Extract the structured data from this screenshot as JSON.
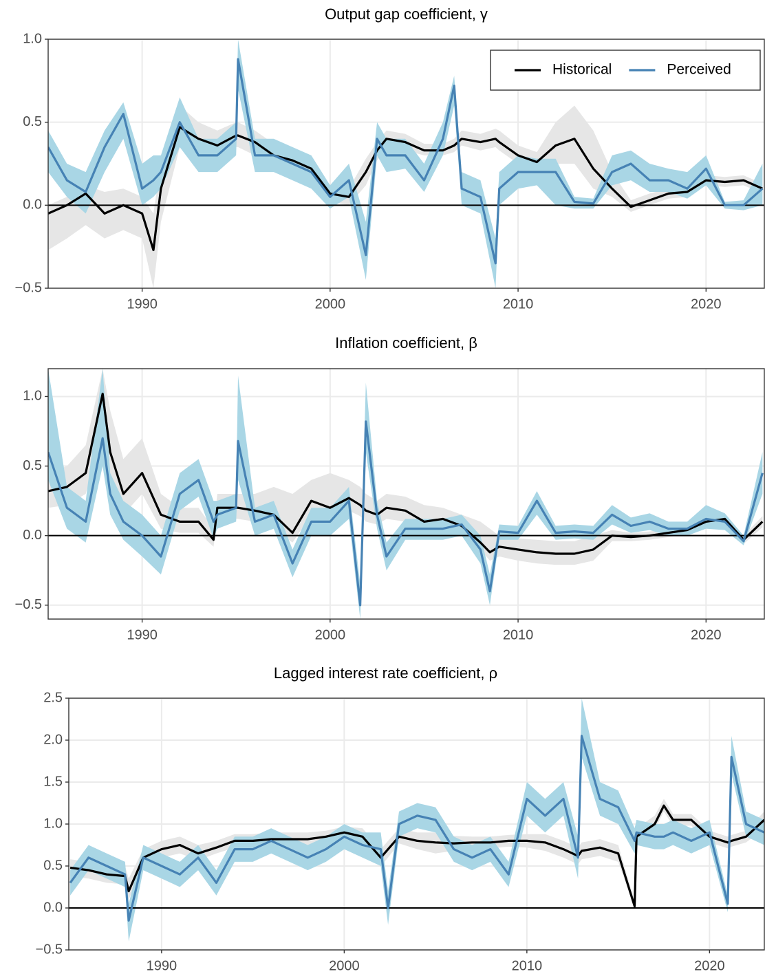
{
  "chart_data": [
    {
      "type": "line",
      "title": "Output gap coefficient, γ",
      "x": [
        1985,
        1986,
        1987,
        1988,
        1989,
        1990,
        1990.6,
        1991,
        1992,
        1993,
        1994,
        1995,
        1995.1,
        1996,
        1997,
        1998,
        1999,
        2000,
        2001,
        2001.9,
        2002.5,
        2003,
        2004,
        2005,
        2006,
        2006.6,
        2007,
        2008,
        2008.8,
        2009,
        2010,
        2011,
        2012,
        2013,
        2014,
        2015,
        2016,
        2017,
        2018,
        2019,
        2020,
        2021,
        2022,
        2023
      ],
      "xlim": [
        1985,
        2023.1
      ],
      "xticks": [
        1990,
        2000,
        2010,
        2020
      ],
      "ylim": [
        -0.5,
        1.0
      ],
      "yticks": [
        {
          "value": -0.5,
          "label": "−0.5"
        },
        {
          "value": 0,
          "label": "0.0"
        },
        {
          "value": 0.5,
          "label": "0.5"
        },
        {
          "value": 1.0,
          "label": "1.0"
        }
      ],
      "hline": 0,
      "grid": true,
      "legend": "top-right",
      "series": [
        {
          "name": "Historical",
          "color": "#000000",
          "band_color": "#e6e6e6",
          "values": [
            -0.05,
            0.0,
            0.07,
            -0.05,
            0.0,
            -0.05,
            -0.27,
            0.1,
            0.47,
            0.4,
            0.36,
            0.42,
            0.42,
            0.38,
            0.3,
            0.27,
            0.22,
            0.07,
            0.05,
            0.2,
            0.33,
            0.4,
            0.38,
            0.33,
            0.33,
            0.36,
            0.4,
            0.38,
            0.4,
            0.38,
            0.3,
            0.26,
            0.36,
            0.4,
            0.22,
            0.1,
            -0.01,
            0.03,
            0.07,
            0.08,
            0.15,
            0.14,
            0.15,
            0.1
          ],
          "lower": [
            -0.27,
            -0.2,
            -0.12,
            -0.2,
            -0.15,
            -0.2,
            -0.5,
            -0.1,
            0.35,
            0.32,
            0.3,
            0.35,
            0.35,
            0.3,
            0.25,
            0.2,
            0.15,
            0.02,
            0.0,
            0.12,
            0.27,
            0.35,
            0.33,
            0.3,
            0.3,
            0.32,
            0.36,
            0.33,
            0.35,
            0.33,
            0.25,
            0.22,
            0.25,
            0.25,
            0.1,
            0.05,
            -0.04,
            0.0,
            0.04,
            0.05,
            0.12,
            0.11,
            0.12,
            0.07
          ],
          "upper": [
            0.0,
            0.05,
            0.12,
            0.08,
            0.1,
            0.05,
            -0.05,
            0.25,
            0.6,
            0.5,
            0.45,
            0.5,
            0.5,
            0.45,
            0.37,
            0.33,
            0.28,
            0.12,
            0.1,
            0.28,
            0.38,
            0.45,
            0.43,
            0.37,
            0.37,
            0.4,
            0.45,
            0.43,
            0.46,
            0.45,
            0.36,
            0.32,
            0.5,
            0.6,
            0.45,
            0.2,
            0.03,
            0.07,
            0.1,
            0.12,
            0.18,
            0.17,
            0.18,
            0.13
          ]
        },
        {
          "name": "Perceived",
          "color": "#4682b4",
          "band_color": "#a9d6e5",
          "values": [
            0.35,
            0.15,
            0.08,
            0.35,
            0.55,
            0.1,
            0.15,
            0.2,
            0.5,
            0.3,
            0.3,
            0.4,
            0.88,
            0.3,
            0.3,
            0.25,
            0.2,
            0.05,
            0.15,
            -0.3,
            0.4,
            0.3,
            0.3,
            0.15,
            0.4,
            0.72,
            0.1,
            0.05,
            -0.35,
            0.1,
            0.2,
            0.2,
            0.2,
            0.02,
            0.01,
            0.2,
            0.25,
            0.15,
            0.15,
            0.1,
            0.22,
            0.0,
            0.0,
            0.1
          ],
          "lower": [
            0.2,
            0.05,
            -0.05,
            0.2,
            0.4,
            0.0,
            0.05,
            0.1,
            0.35,
            0.2,
            0.2,
            0.3,
            0.7,
            0.2,
            0.2,
            0.15,
            0.1,
            -0.02,
            0.05,
            -0.45,
            0.3,
            0.2,
            0.22,
            0.08,
            0.3,
            0.6,
            0.0,
            -0.05,
            -0.5,
            0.0,
            0.1,
            0.12,
            0.0,
            -0.02,
            -0.02,
            0.12,
            0.15,
            0.08,
            0.08,
            0.04,
            0.12,
            -0.02,
            -0.03,
            0.0
          ],
          "upper": [
            0.45,
            0.25,
            0.2,
            0.45,
            0.62,
            0.25,
            0.3,
            0.3,
            0.65,
            0.4,
            0.4,
            0.5,
            1.0,
            0.4,
            0.4,
            0.35,
            0.3,
            0.12,
            0.25,
            -0.1,
            0.5,
            0.4,
            0.4,
            0.25,
            0.5,
            0.78,
            0.2,
            0.15,
            -0.2,
            0.2,
            0.3,
            0.28,
            0.28,
            0.05,
            0.04,
            0.3,
            0.33,
            0.25,
            0.22,
            0.2,
            0.3,
            0.02,
            0.03,
            0.25
          ]
        }
      ]
    },
    {
      "type": "line",
      "title": "Inflation coefficient,  β",
      "x": [
        1985,
        1986,
        1987,
        1987.9,
        1988.3,
        1989,
        1990,
        1991,
        1992,
        1993,
        1993.8,
        1994,
        1995,
        1995.1,
        1996,
        1997,
        1998,
        1999,
        2000,
        2001,
        2001.6,
        2001.9,
        2002.5,
        2003,
        2004,
        2005,
        2006,
        2007,
        2008,
        2008.5,
        2009,
        2010,
        2011,
        2012,
        2013,
        2014,
        2015,
        2016,
        2017,
        2018,
        2019,
        2020,
        2021,
        2022,
        2023
      ],
      "xlim": [
        1985,
        2023.1
      ],
      "xticks": [
        1990,
        2000,
        2010,
        2020
      ],
      "ylim": [
        -0.6,
        1.2
      ],
      "yticks": [
        {
          "value": -0.5,
          "label": "−0.5"
        },
        {
          "value": 0,
          "label": "0.0"
        },
        {
          "value": 0.5,
          "label": "0.5"
        },
        {
          "value": 1.0,
          "label": "1.0"
        }
      ],
      "hline": 0,
      "grid": true,
      "series": [
        {
          "color": "#000000",
          "band_color": "#e6e6e6",
          "values": [
            0.32,
            0.35,
            0.45,
            1.02,
            0.6,
            0.3,
            0.45,
            0.15,
            0.1,
            0.1,
            -0.03,
            0.2,
            0.2,
            0.2,
            0.18,
            0.15,
            0.02,
            0.25,
            0.2,
            0.27,
            0.22,
            0.18,
            0.15,
            0.2,
            0.18,
            0.1,
            0.12,
            0.07,
            -0.05,
            -0.12,
            -0.08,
            -0.1,
            -0.12,
            -0.13,
            -0.13,
            -0.1,
            0.0,
            -0.01,
            0.0,
            0.02,
            0.04,
            0.1,
            0.12,
            -0.03,
            0.1
          ],
          "lower": [
            0.2,
            0.22,
            0.3,
            0.75,
            0.45,
            0.15,
            0.3,
            0.05,
            0.02,
            0.02,
            -0.08,
            0.12,
            0.12,
            0.12,
            0.1,
            0.05,
            -0.05,
            0.15,
            0.1,
            0.18,
            0.14,
            0.1,
            0.08,
            0.12,
            0.1,
            0.03,
            0.05,
            0.0,
            -0.1,
            -0.18,
            -0.15,
            -0.18,
            -0.2,
            -0.21,
            -0.21,
            -0.18,
            -0.04,
            -0.04,
            -0.03,
            -0.01,
            0.01,
            0.07,
            0.09,
            -0.06,
            0.06
          ],
          "upper": [
            0.45,
            0.5,
            0.65,
            1.2,
            0.9,
            0.55,
            0.7,
            0.3,
            0.2,
            0.2,
            0.05,
            0.3,
            0.3,
            0.3,
            0.3,
            0.35,
            0.3,
            0.4,
            0.45,
            0.4,
            0.35,
            0.3,
            0.25,
            0.3,
            0.28,
            0.22,
            0.2,
            0.15,
            0.1,
            0.05,
            0.0,
            -0.02,
            -0.03,
            -0.04,
            -0.04,
            0.0,
            0.04,
            0.02,
            0.03,
            0.05,
            0.07,
            0.13,
            0.15,
            0.0,
            0.14
          ]
        },
        {
          "color": "#4682b4",
          "band_color": "#a9d6e5",
          "values": [
            0.6,
            0.2,
            0.1,
            0.7,
            0.3,
            0.1,
            0.0,
            -0.15,
            0.3,
            0.4,
            0.1,
            0.15,
            0.2,
            0.68,
            0.1,
            0.15,
            -0.2,
            0.1,
            0.1,
            0.25,
            -0.5,
            0.82,
            0.15,
            -0.15,
            0.05,
            0.05,
            0.05,
            0.08,
            -0.1,
            -0.4,
            0.03,
            0.02,
            0.25,
            0.02,
            0.03,
            0.02,
            0.15,
            0.07,
            0.1,
            0.05,
            0.05,
            0.12,
            0.1,
            -0.04,
            0.45
          ],
          "lower": [
            0.4,
            0.05,
            -0.05,
            0.5,
            0.15,
            -0.03,
            -0.15,
            -0.28,
            0.18,
            0.28,
            -0.02,
            0.05,
            0.1,
            0.4,
            0.0,
            0.05,
            -0.3,
            0.0,
            0.0,
            0.12,
            -0.6,
            0.6,
            0.05,
            -0.25,
            -0.03,
            -0.03,
            -0.03,
            0.0,
            -0.2,
            -0.5,
            -0.03,
            -0.03,
            0.15,
            -0.03,
            -0.02,
            -0.03,
            0.08,
            0.02,
            0.04,
            0.0,
            0.0,
            0.05,
            0.04,
            -0.07,
            0.3
          ],
          "upper": [
            1.2,
            0.35,
            0.25,
            1.2,
            0.45,
            0.25,
            0.15,
            0.0,
            0.45,
            0.55,
            0.25,
            0.25,
            0.3,
            1.15,
            0.2,
            0.25,
            -0.1,
            0.2,
            0.2,
            0.35,
            -0.35,
            1.1,
            0.25,
            -0.05,
            0.12,
            0.12,
            0.12,
            0.15,
            0.0,
            -0.28,
            0.08,
            0.07,
            0.32,
            0.07,
            0.08,
            0.07,
            0.22,
            0.13,
            0.16,
            0.1,
            0.1,
            0.22,
            0.16,
            0.0,
            0.6
          ]
        }
      ]
    },
    {
      "type": "line",
      "title": "Lagged interest rate coefficient, ρ",
      "x": [
        1985,
        1986,
        1987,
        1988,
        1988.2,
        1989,
        1990,
        1991,
        1992,
        1993,
        1994,
        1995,
        1996,
        1997,
        1998,
        1999,
        2000,
        2001,
        2002,
        2002.4,
        2003,
        2004,
        2005,
        2006,
        2007,
        2008,
        2009,
        2010,
        2011,
        2012,
        2012.8,
        2013,
        2014,
        2015,
        2015.9,
        2016,
        2017,
        2017.5,
        2018,
        2019,
        2020,
        2021,
        2021.2,
        2022,
        2023
      ],
      "xlim": [
        1984.92,
        2023.0
      ],
      "xticks": [
        1990,
        2000,
        2010,
        2020
      ],
      "ylim": [
        -0.5,
        2.5
      ],
      "yticks": [
        {
          "value": -0.5,
          "label": "−0.5"
        },
        {
          "value": 0,
          "label": "0.0"
        },
        {
          "value": 0.5,
          "label": "0.5"
        },
        {
          "value": 1.0,
          "label": "1.0"
        },
        {
          "value": 1.5,
          "label": "1.5"
        },
        {
          "value": 2.0,
          "label": "2.0"
        },
        {
          "value": 2.5,
          "label": "2.5"
        }
      ],
      "hline": 0,
      "grid": true,
      "series": [
        {
          "color": "#000000",
          "band_color": "#e6e6e6",
          "values": [
            0.48,
            0.45,
            0.4,
            0.38,
            0.2,
            0.6,
            0.7,
            0.75,
            0.65,
            0.72,
            0.8,
            0.8,
            0.82,
            0.82,
            0.82,
            0.85,
            0.9,
            0.85,
            0.6,
            0.7,
            0.85,
            0.8,
            0.78,
            0.77,
            0.78,
            0.78,
            0.8,
            0.8,
            0.78,
            0.7,
            0.62,
            0.68,
            0.72,
            0.65,
            0.02,
            0.85,
            1.0,
            1.22,
            1.05,
            1.05,
            0.85,
            0.78,
            0.8,
            0.85,
            1.05
          ],
          "lower": [
            0.38,
            0.35,
            0.3,
            0.28,
            0.1,
            0.5,
            0.6,
            0.65,
            0.57,
            0.65,
            0.72,
            0.73,
            0.75,
            0.75,
            0.75,
            0.78,
            0.83,
            0.76,
            0.5,
            0.6,
            0.77,
            0.7,
            0.65,
            0.68,
            0.71,
            0.71,
            0.73,
            0.72,
            0.68,
            0.6,
            0.52,
            0.58,
            0.62,
            0.55,
            0.0,
            0.78,
            0.93,
            1.15,
            0.98,
            0.98,
            0.78,
            0.71,
            0.73,
            0.78,
            0.95
          ],
          "upper": [
            0.58,
            0.55,
            0.5,
            0.5,
            0.35,
            0.7,
            0.8,
            0.85,
            0.75,
            0.8,
            0.88,
            0.88,
            0.9,
            0.9,
            0.9,
            0.92,
            0.97,
            0.95,
            0.7,
            0.8,
            0.95,
            0.9,
            0.9,
            0.86,
            0.85,
            0.85,
            0.87,
            0.88,
            0.88,
            0.8,
            0.72,
            0.78,
            0.82,
            0.75,
            0.08,
            0.95,
            1.1,
            1.3,
            1.12,
            1.12,
            0.92,
            0.85,
            0.87,
            0.92,
            1.15
          ]
        },
        {
          "color": "#4682b4",
          "band_color": "#a9d6e5",
          "values": [
            0.3,
            0.6,
            0.5,
            0.4,
            -0.15,
            0.6,
            0.5,
            0.4,
            0.6,
            0.3,
            0.7,
            0.7,
            0.8,
            0.7,
            0.6,
            0.7,
            0.85,
            0.75,
            0.7,
            0.0,
            1.0,
            1.1,
            1.05,
            0.7,
            0.6,
            0.7,
            0.4,
            1.3,
            1.1,
            1.3,
            0.6,
            2.05,
            1.3,
            1.2,
            0.8,
            0.9,
            0.85,
            0.85,
            0.9,
            0.8,
            0.9,
            0.05,
            1.8,
            1.0,
            0.9
          ],
          "lower": [
            0.15,
            0.45,
            0.35,
            0.25,
            -0.4,
            0.45,
            0.35,
            0.25,
            0.45,
            0.15,
            0.55,
            0.55,
            0.65,
            0.55,
            0.45,
            0.55,
            0.7,
            0.6,
            0.5,
            -0.2,
            0.85,
            0.95,
            0.9,
            0.55,
            0.45,
            0.55,
            0.25,
            1.1,
            0.9,
            1.1,
            0.35,
            1.8,
            1.1,
            1.0,
            0.65,
            0.75,
            0.7,
            0.7,
            0.75,
            0.65,
            0.75,
            -0.05,
            1.6,
            0.85,
            0.75
          ],
          "upper": [
            0.45,
            0.75,
            0.65,
            0.55,
            0.05,
            0.75,
            0.65,
            0.55,
            0.75,
            0.45,
            0.85,
            0.85,
            0.95,
            0.85,
            0.75,
            0.85,
            1.0,
            0.9,
            0.9,
            0.2,
            1.15,
            1.25,
            1.2,
            0.85,
            0.75,
            0.85,
            0.55,
            1.5,
            1.3,
            1.5,
            0.85,
            2.5,
            1.5,
            1.4,
            0.95,
            1.05,
            1.0,
            1.0,
            1.05,
            0.95,
            1.05,
            0.15,
            2.05,
            1.15,
            1.05
          ]
        }
      ]
    }
  ]
}
